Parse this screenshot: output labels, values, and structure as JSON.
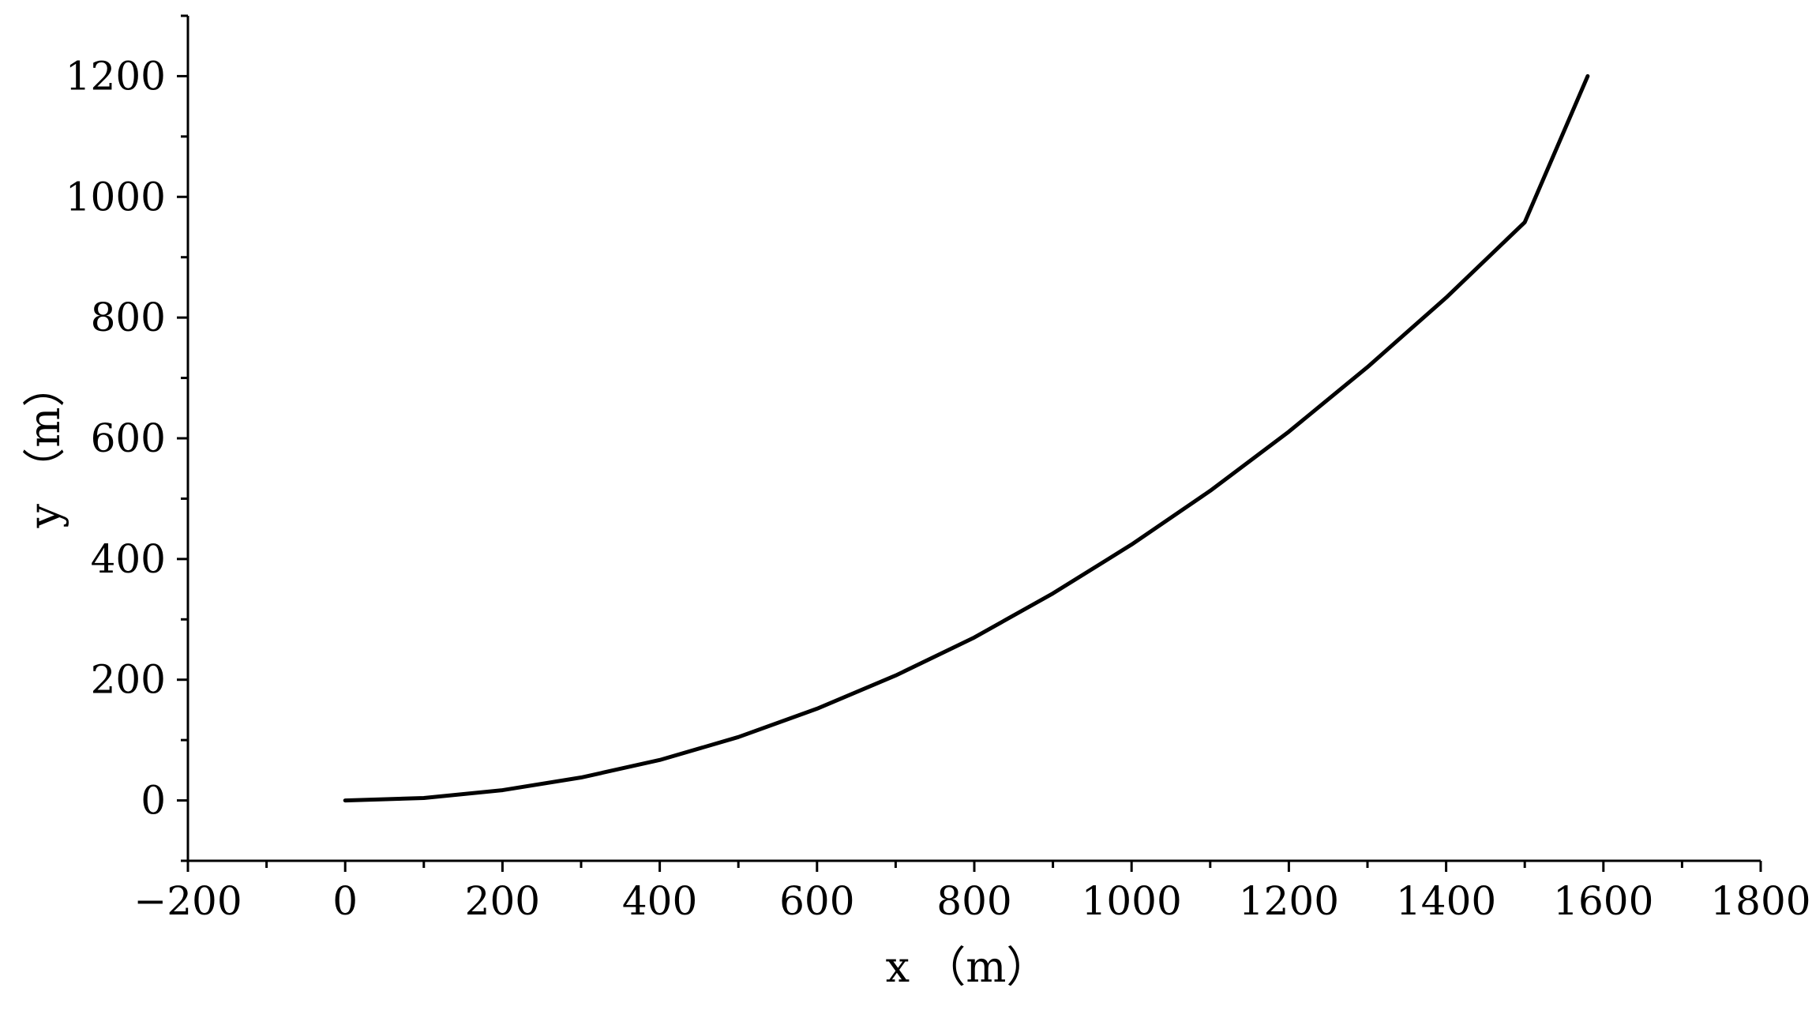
{
  "chart_data": {
    "type": "line",
    "xlabel": "x （m）",
    "ylabel": "y （m）",
    "xlim": [
      -200,
      1800
    ],
    "ylim": [
      -100,
      1300
    ],
    "xticks": [
      -200,
      0,
      200,
      400,
      600,
      800,
      1000,
      1200,
      1400,
      1600,
      1800
    ],
    "xtick_labels": [
      "−200",
      "0",
      "200",
      "400",
      "600",
      "800",
      "1000",
      "1200",
      "1400",
      "1600",
      "1800"
    ],
    "yticks": [
      0,
      200,
      400,
      600,
      800,
      1000,
      1200
    ],
    "ytick_labels": [
      "0",
      "200",
      "400",
      "600",
      "800",
      "1000",
      "1200"
    ],
    "x_minor_step": 100,
    "y_minor_step": 100,
    "grid": false,
    "series": [
      {
        "x": [
          0,
          100,
          200,
          300,
          400,
          500,
          600,
          700,
          800,
          900,
          1000,
          1100,
          1200,
          1300,
          1400,
          1500,
          1580
        ],
        "y": [
          0,
          4,
          17,
          38,
          67,
          105,
          152,
          207,
          270,
          343,
          424,
          513,
          611,
          718,
          833,
          958,
          1200
        ],
        "color": "#000000"
      }
    ]
  }
}
